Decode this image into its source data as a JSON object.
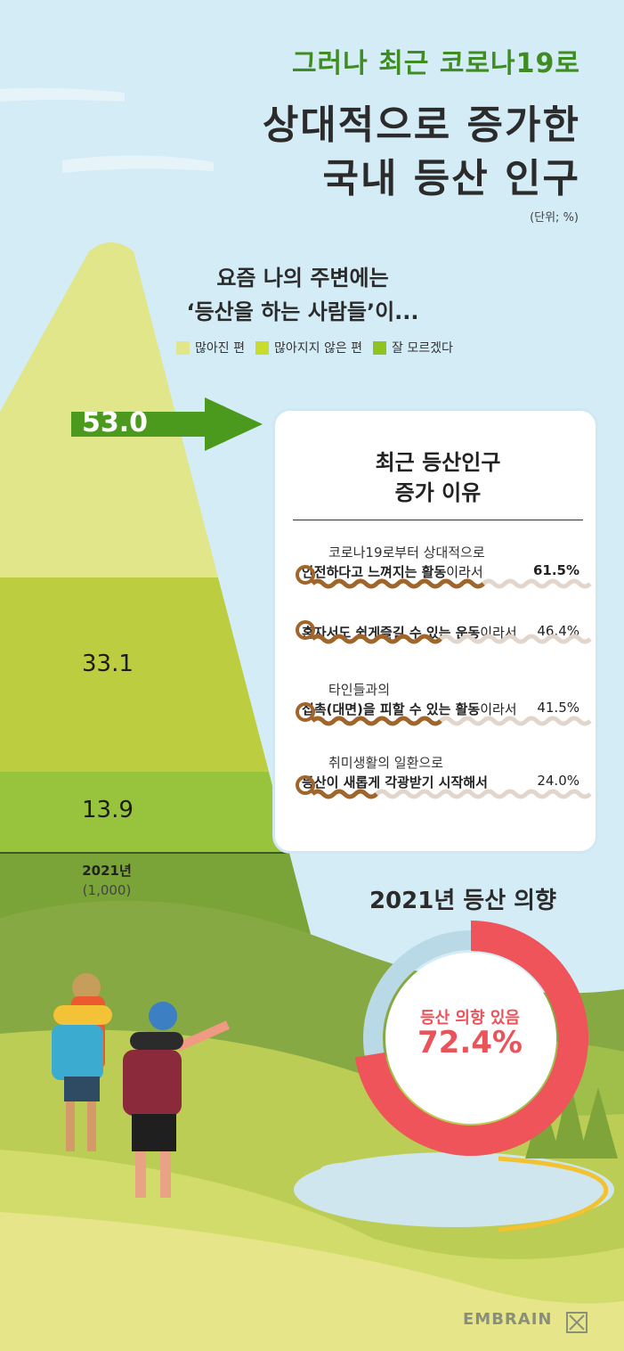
{
  "header": {
    "subtitle": "그러나 최근 코로나19로",
    "title_line1": "상대적으로 증가한",
    "title_line2": "국내 등산 인구",
    "unit": "(단위; %)"
  },
  "question": {
    "line1": "요즘 나의 주변에는",
    "line2": "‘등산을 하는 사람들’이..."
  },
  "chart_data": {
    "type": "bar",
    "year": "2021년",
    "sample": "(1,000)",
    "legend": [
      "많아진 편",
      "많아지지 않은 편",
      "잘 모르겠다"
    ],
    "series": [
      {
        "name": "많아진 편",
        "value": "53.0"
      },
      {
        "name": "많아지지 않은 편",
        "value": "33.1"
      },
      {
        "name": "잘 모르겠다",
        "value": "13.9"
      }
    ],
    "colors": [
      "#e0e689",
      "#c8dc2e",
      "#8fc31f"
    ]
  },
  "reasons": {
    "title_line1": "최근 등산인구",
    "title_line2": "증가 이유",
    "items": [
      {
        "line1": "코로나19로부터 상대적으로",
        "bold": "안전하다고 느껴지는 활동",
        "suffix": "이라서",
        "value": "61.5%",
        "pct": 61.5
      },
      {
        "line1": "",
        "bold": "혼자서도 쉽게즐길 수 있는 운동",
        "suffix": "이라서",
        "value": "46.4%",
        "pct": 46.4
      },
      {
        "line1": "타인들과의",
        "bold": "접촉(대면)을 피할 수 있는 활동",
        "suffix": "이라서",
        "value": "41.5%",
        "pct": 41.5
      },
      {
        "line1": "취미생활의 일환으로",
        "bold": "등산이 새롭게 각광받기 시작해서",
        "suffix": "",
        "value": "24.0%",
        "pct": 24.0
      }
    ]
  },
  "intention": {
    "title": "2021년 등산 의향",
    "label": "등산 의향 있음",
    "value_text": "72.4%",
    "pct": 72.4
  },
  "footer": {
    "brand": "EMBRAIN"
  },
  "colors": {
    "accent_green": "#3f8c22",
    "rope": "#a0652b",
    "rope_track": "#e2d6cc",
    "donut": "#ee5459",
    "donut_track": "#b9d9e6"
  }
}
